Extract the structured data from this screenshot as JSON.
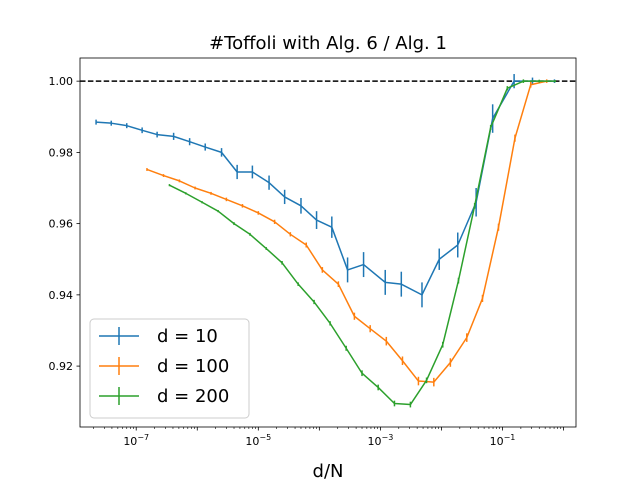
{
  "chart_data": {
    "type": "line",
    "title": "#Toffoli with Alg. 6 / Alg. 1",
    "xlabel": "d/N",
    "ylabel": "",
    "xscale": "log",
    "xlim": [
      1.2e-08,
      1.6
    ],
    "ylim": [
      0.9029,
      1.0065
    ],
    "x_ticks": [
      {
        "value": 1e-07,
        "label": "10^-7"
      },
      {
        "value": 1e-05,
        "label": "10^-5"
      },
      {
        "value": 0.001,
        "label": "10^-3"
      },
      {
        "value": 0.1,
        "label": "10^-1"
      }
    ],
    "y_ticks": [
      0.92,
      0.94,
      0.96,
      0.98,
      1.0
    ],
    "y_tick_labels": [
      "0.92",
      "0.94",
      "0.96",
      "0.98",
      "1.00"
    ],
    "reference_line": {
      "y": 1.0,
      "style": "dashed",
      "color": "#000000"
    },
    "grid": false,
    "legend_position": "lower-left",
    "series": [
      {
        "name": "d = 10",
        "color": "#1f77b4",
        "x": [
          2.2e-08,
          3.9e-08,
          7e-08,
          1.25e-07,
          2.2e-07,
          4.1e-07,
          7.5e-07,
          1.35e-06,
          2.5e-06,
          4.5e-06,
          8e-06,
          1.5e-05,
          2.7e-05,
          5e-05,
          9e-05,
          0.00016,
          0.00029,
          0.00053,
          0.0012,
          0.0022,
          0.0048,
          0.0092,
          0.0185,
          0.037,
          0.069,
          0.155,
          0.31,
          0.71
        ],
        "y": [
          0.9885,
          0.9882,
          0.9875,
          0.9862,
          0.985,
          0.9845,
          0.983,
          0.9815,
          0.98,
          0.9745,
          0.9745,
          0.9715,
          0.9675,
          0.965,
          0.961,
          0.959,
          0.947,
          0.9485,
          0.9435,
          0.943,
          0.94,
          0.95,
          0.954,
          0.966,
          0.9895,
          1.0,
          1.0,
          1.0
        ],
        "err": [
          0.0007,
          0.0007,
          0.0007,
          0.0008,
          0.0008,
          0.001,
          0.001,
          0.001,
          0.0012,
          0.002,
          0.0018,
          0.002,
          0.002,
          0.0022,
          0.0025,
          0.003,
          0.0035,
          0.0035,
          0.0035,
          0.0035,
          0.0035,
          0.003,
          0.0035,
          0.004,
          0.004,
          0.002,
          0.001,
          0.0005
        ]
      },
      {
        "name": "d = 100",
        "color": "#ff7f0e",
        "x": [
          1.5e-07,
          2.8e-07,
          5.1e-07,
          9.2e-07,
          1.68e-06,
          3e-06,
          5.5e-06,
          1e-05,
          1.85e-05,
          3.35e-05,
          6.1e-05,
          0.000112,
          0.000205,
          0.000375,
          0.00068,
          0.00125,
          0.0023,
          0.0042,
          0.0075,
          0.014,
          0.026,
          0.047,
          0.086,
          0.16,
          0.29,
          0.53
        ],
        "y": [
          0.9752,
          0.9735,
          0.972,
          0.97,
          0.9685,
          0.9668,
          0.965,
          0.963,
          0.9605,
          0.957,
          0.954,
          0.947,
          0.943,
          0.934,
          0.9305,
          0.927,
          0.9215,
          0.9158,
          0.9155,
          0.921,
          0.928,
          0.939,
          0.959,
          0.984,
          0.999,
          1.0
        ],
        "err": [
          0.0004,
          0.0004,
          0.0004,
          0.0004,
          0.0004,
          0.0005,
          0.0005,
          0.0005,
          0.0006,
          0.0006,
          0.0007,
          0.0008,
          0.0008,
          0.001,
          0.001,
          0.0012,
          0.0012,
          0.0012,
          0.0012,
          0.0012,
          0.0012,
          0.001,
          0.001,
          0.001,
          0.0008,
          0.0005
        ]
      },
      {
        "name": "d = 200",
        "color": "#2ca02c",
        "x": [
          3.5e-07,
          6.5e-07,
          1.2e-06,
          2.2e-06,
          4e-06,
          7.3e-06,
          1.35e-05,
          2.45e-05,
          4.5e-05,
          8.2e-05,
          0.00015,
          0.000275,
          0.0005,
          0.00092,
          0.0017,
          0.0031,
          0.0057,
          0.0105,
          0.019,
          0.035,
          0.064,
          0.12,
          0.22,
          0.4,
          0.73
        ],
        "y": [
          0.9708,
          0.9685,
          0.966,
          0.9635,
          0.96,
          0.957,
          0.953,
          0.949,
          0.943,
          0.938,
          0.932,
          0.925,
          0.918,
          0.914,
          0.9095,
          0.9092,
          0.916,
          0.926,
          0.944,
          0.965,
          0.987,
          0.998,
          1.0,
          1.0,
          1.0
        ],
        "err": [
          0.0003,
          0.0003,
          0.0003,
          0.0003,
          0.0004,
          0.0004,
          0.0004,
          0.0005,
          0.0005,
          0.0006,
          0.0006,
          0.0007,
          0.0008,
          0.0008,
          0.0008,
          0.0008,
          0.0008,
          0.0008,
          0.0008,
          0.0008,
          0.0007,
          0.0006,
          0.0005,
          0.0004,
          0.0003
        ]
      }
    ]
  }
}
